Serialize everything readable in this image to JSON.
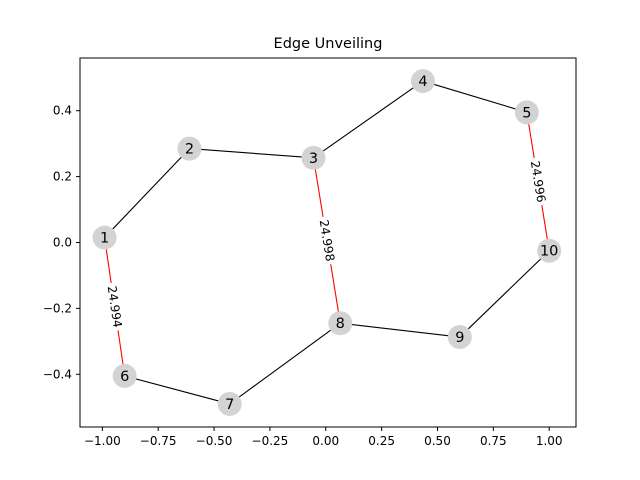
{
  "chart_data": {
    "type": "network",
    "title": "Edge Unveiling",
    "xlim": [
      -1.1,
      1.12
    ],
    "ylim": [
      -0.56,
      0.56
    ],
    "x_ticks": [
      -1.0,
      -0.75,
      -0.5,
      -0.25,
      0.0,
      0.25,
      0.5,
      0.75,
      1.0
    ],
    "x_tick_labels": [
      "−1.00",
      "−0.75",
      "−0.50",
      "−0.25",
      "0.00",
      "0.25",
      "0.50",
      "0.75",
      "1.00"
    ],
    "y_ticks": [
      -0.4,
      -0.2,
      0.0,
      0.2,
      0.4
    ],
    "y_tick_labels": [
      "−0.4",
      "−0.2",
      "0.0",
      "0.2",
      "0.4"
    ],
    "nodes": [
      {
        "id": "1",
        "x": -0.99,
        "y": 0.015
      },
      {
        "id": "2",
        "x": -0.61,
        "y": 0.285
      },
      {
        "id": "3",
        "x": -0.055,
        "y": 0.257
      },
      {
        "id": "4",
        "x": 0.435,
        "y": 0.49
      },
      {
        "id": "5",
        "x": 0.9,
        "y": 0.395
      },
      {
        "id": "6",
        "x": -0.9,
        "y": -0.405
      },
      {
        "id": "7",
        "x": -0.43,
        "y": -0.49
      },
      {
        "id": "8",
        "x": 0.065,
        "y": -0.245
      },
      {
        "id": "9",
        "x": 0.6,
        "y": -0.287
      },
      {
        "id": "10",
        "x": 1.0,
        "y": -0.025
      }
    ],
    "edges": [
      {
        "source": "1",
        "target": "2",
        "color": "#000000",
        "label": ""
      },
      {
        "source": "2",
        "target": "3",
        "color": "#000000",
        "label": ""
      },
      {
        "source": "3",
        "target": "4",
        "color": "#000000",
        "label": ""
      },
      {
        "source": "4",
        "target": "5",
        "color": "#000000",
        "label": ""
      },
      {
        "source": "5",
        "target": "10",
        "color": "#ff0000",
        "label": "24.996"
      },
      {
        "source": "10",
        "target": "9",
        "color": "#000000",
        "label": ""
      },
      {
        "source": "9",
        "target": "8",
        "color": "#000000",
        "label": ""
      },
      {
        "source": "3",
        "target": "8",
        "color": "#ff0000",
        "label": "24.998"
      },
      {
        "source": "8",
        "target": "7",
        "color": "#000000",
        "label": ""
      },
      {
        "source": "7",
        "target": "6",
        "color": "#000000",
        "label": ""
      },
      {
        "source": "1",
        "target": "6",
        "color": "#ff0000",
        "label": "24.994"
      }
    ]
  }
}
